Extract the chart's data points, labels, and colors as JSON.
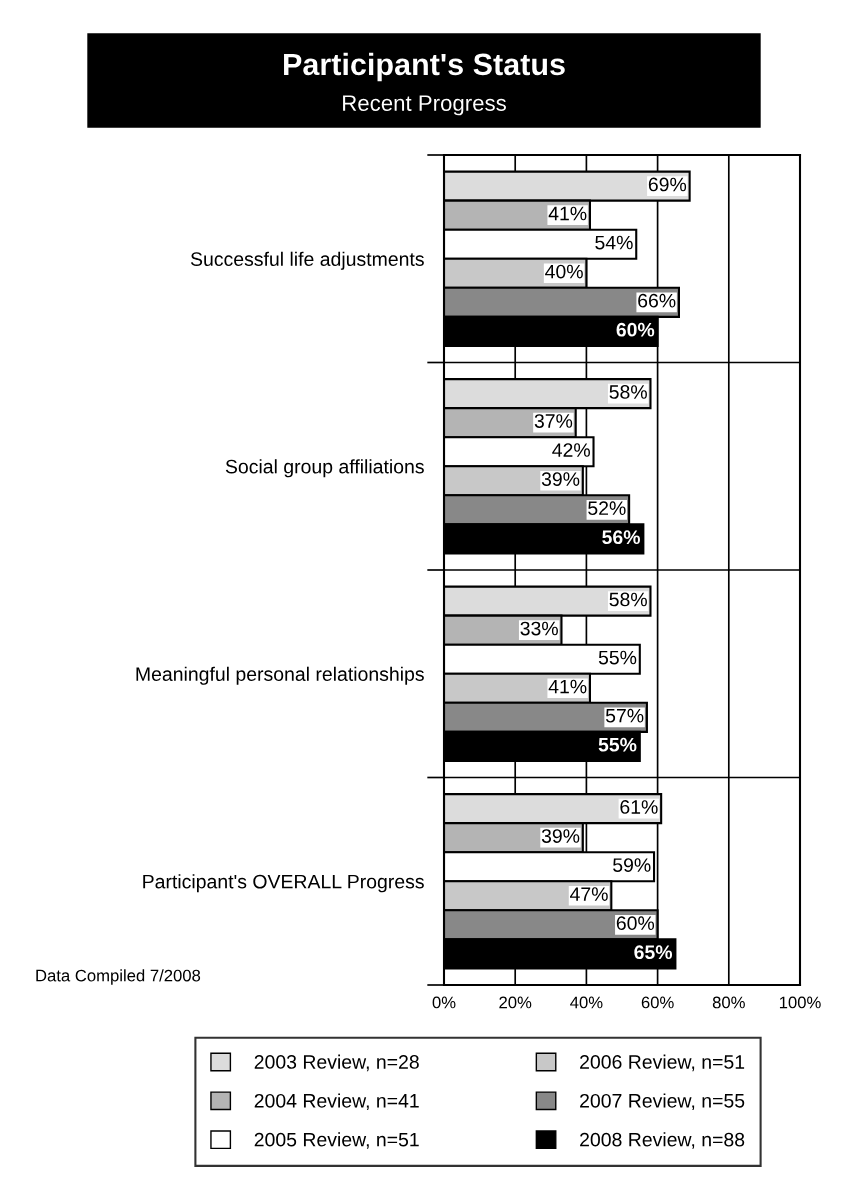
{
  "chart_data": {
    "type": "bar",
    "orientation": "horizontal",
    "title": "Participant's Status",
    "subtitle": "Recent Progress",
    "categories": [
      "Successful life adjustments",
      "Social group affiliations",
      "Meaningful personal relationships",
      "Participant's OVERALL Progress"
    ],
    "series": [
      {
        "name": "2003 Review, n=28",
        "color": "#dcdcdc",
        "values": [
          69,
          58,
          58,
          61
        ],
        "value_labels": [
          "69%",
          "58%",
          "58%",
          "61%"
        ]
      },
      {
        "name": "2004 Review, n=41",
        "color": "#b4b4b4",
        "values": [
          41,
          37,
          33,
          39
        ],
        "value_labels": [
          "41%",
          "37%",
          "33%",
          "39%"
        ]
      },
      {
        "name": "2005 Review, n=51",
        "color": "#ffffff",
        "values": [
          54,
          42,
          55,
          59
        ],
        "value_labels": [
          "54%",
          "42%",
          "55%",
          "59%"
        ]
      },
      {
        "name": "2006 Review, n=51",
        "color": "#c8c8c8",
        "values": [
          40,
          39,
          41,
          47
        ],
        "value_labels": [
          "40%",
          "39%",
          "41%",
          "47%"
        ]
      },
      {
        "name": "2007 Review, n=55",
        "color": "#888888",
        "values": [
          66,
          52,
          57,
          60
        ],
        "value_labels": [
          "66%",
          "52%",
          "57%",
          "60%"
        ]
      },
      {
        "name": "2008 Review, n=88",
        "color": "#000000",
        "values": [
          60,
          56,
          55,
          65
        ],
        "value_labels": [
          "60%",
          "56%",
          "55%",
          "65%"
        ]
      }
    ],
    "xlim": [
      0,
      100
    ],
    "xticks": [
      {
        "value": 0,
        "label": "0%"
      },
      {
        "value": 20,
        "label": "20%"
      },
      {
        "value": 40,
        "label": "40%"
      },
      {
        "value": 60,
        "label": "60%"
      },
      {
        "value": 80,
        "label": "80%"
      },
      {
        "value": 100,
        "label": "100%"
      }
    ],
    "grid": true,
    "legend": "bottom",
    "annotations": [
      "Data Compiled 7/2008"
    ]
  }
}
